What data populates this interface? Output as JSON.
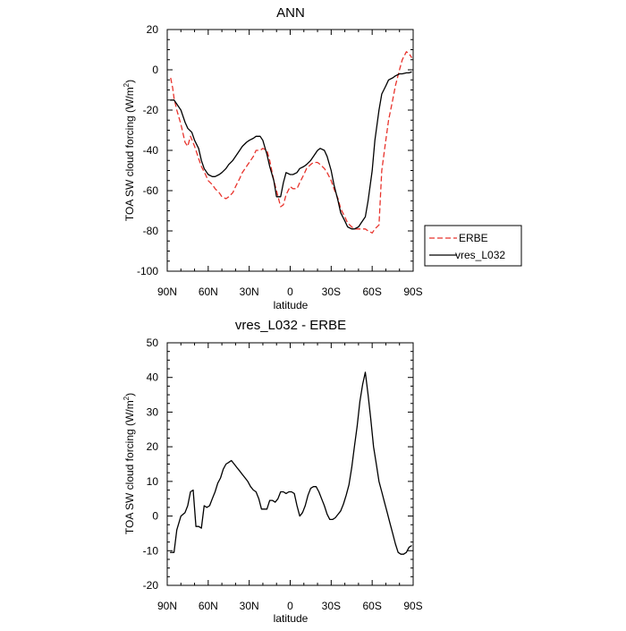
{
  "chart_data": [
    {
      "type": "line",
      "title": "ANN",
      "xlabel": "latitude",
      "ylabel": "TOA SW cloud forcing (W/m",
      "ylabel_superscript": "2",
      "ylabel_close": ")",
      "xlim": [
        90,
        -90
      ],
      "ylim": [
        -100,
        20
      ],
      "xticks": [
        90,
        60,
        30,
        0,
        -30,
        -60,
        -90
      ],
      "xtick_labels": [
        "90N",
        "60N",
        "30N",
        "0",
        "30S",
        "60S",
        "90S"
      ],
      "yticks": [
        -100,
        -80,
        -60,
        -40,
        -20,
        0,
        20
      ],
      "ytick_labels": [
        "-100",
        "-80",
        "-60",
        "-40",
        "-20",
        "0",
        "20"
      ],
      "legend": "outside-right",
      "series": [
        {
          "name": "ERBE",
          "color": "#e8332c",
          "dash": true,
          "x": [
            87.5,
            86,
            85,
            83,
            80,
            77,
            75,
            73,
            70,
            67,
            65,
            62,
            60,
            57,
            55,
            52,
            50,
            47,
            45,
            42,
            40,
            37,
            35,
            32,
            30,
            27,
            25,
            22,
            20,
            17,
            15,
            12,
            10,
            7,
            5,
            3,
            0,
            -2,
            -5,
            -7,
            -10,
            -12,
            -15,
            -17,
            -20,
            -22,
            -25,
            -27,
            -30,
            -32,
            -35,
            -37,
            -40,
            -42,
            -45,
            -47,
            -50,
            -52,
            -55,
            -57,
            -60,
            -62,
            -65,
            -67,
            -70,
            -72,
            -75,
            -77,
            -80,
            -82,
            -85,
            -87,
            -89
          ],
          "y": [
            -4,
            -9,
            -14,
            -20,
            -27,
            -36,
            -38,
            -33,
            -38,
            -44,
            -48,
            -52,
            -55,
            -57,
            -59,
            -61,
            -63,
            -64,
            -63,
            -61,
            -58,
            -54,
            -51,
            -48,
            -46,
            -43,
            -40,
            -40,
            -39,
            -40,
            -45,
            -55,
            -60,
            -68,
            -67,
            -62,
            -58,
            -59,
            -59,
            -56,
            -52,
            -49,
            -47,
            -46,
            -46,
            -47,
            -49,
            -51,
            -55,
            -59,
            -64,
            -69,
            -73,
            -76,
            -78,
            -79,
            -79,
            -79,
            -79,
            -80,
            -81,
            -79,
            -77,
            -50,
            -35,
            -25,
            -15,
            -8,
            0,
            5,
            9,
            8,
            6
          ]
        },
        {
          "name": "vres_L032",
          "color": "#000000",
          "dash": false,
          "x": [
            88,
            86,
            85,
            83,
            80,
            77,
            75,
            72,
            70,
            67,
            65,
            63,
            60,
            57,
            55,
            52,
            50,
            47,
            45,
            42,
            40,
            37,
            35,
            32,
            30,
            27,
            25,
            22,
            20,
            17,
            15,
            12,
            10,
            7,
            5,
            3,
            0,
            -2,
            -5,
            -7,
            -10,
            -12,
            -15,
            -17,
            -20,
            -22,
            -25,
            -27,
            -30,
            -32,
            -35,
            -37,
            -40,
            -42,
            -45,
            -47,
            -50,
            -52,
            -55,
            -57,
            -60,
            -62,
            -65,
            -67,
            -70,
            -72,
            -75,
            -77,
            -80,
            -82,
            -85,
            -87,
            -89
          ],
          "y": [
            -15,
            -15,
            -15,
            -17,
            -20,
            -26,
            -29,
            -31,
            -35,
            -39,
            -45,
            -49,
            -52,
            -53,
            -53,
            -52,
            -51,
            -49,
            -47,
            -45,
            -43,
            -40,
            -38,
            -36,
            -35,
            -34,
            -33,
            -33,
            -35,
            -42,
            -48,
            -55,
            -63,
            -63,
            -56,
            -51,
            -52,
            -52,
            -51,
            -49,
            -48,
            -47,
            -45,
            -43,
            -40,
            -39,
            -40,
            -43,
            -50,
            -57,
            -65,
            -71,
            -75,
            -78,
            -79,
            -79,
            -78,
            -76,
            -73,
            -65,
            -50,
            -35,
            -20,
            -12,
            -8,
            -5,
            -4,
            -3,
            -2,
            -2,
            -1.5,
            -1.5,
            -1
          ]
        }
      ]
    },
    {
      "type": "line",
      "title": "vres_L032 - ERBE",
      "xlabel": "latitude",
      "ylabel": "TOA SW cloud forcing (W/m",
      "ylabel_superscript": "2",
      "ylabel_close": ")",
      "xlim": [
        90,
        -90
      ],
      "ylim": [
        -20,
        50
      ],
      "xticks": [
        90,
        60,
        30,
        0,
        -30,
        -60,
        -90
      ],
      "xtick_labels": [
        "90N",
        "60N",
        "30N",
        "0",
        "30S",
        "60S",
        "90S"
      ],
      "yticks": [
        -20,
        -10,
        0,
        10,
        20,
        30,
        40,
        50
      ],
      "ytick_labels": [
        "-20",
        "-10",
        "0",
        "10",
        "20",
        "30",
        "40",
        "50"
      ],
      "series": [
        {
          "color": "#000000",
          "dash": false,
          "x": [
            88,
            86,
            85,
            83,
            80,
            77,
            75,
            73,
            71,
            69,
            67,
            65,
            63,
            61,
            59,
            57,
            55,
            53,
            51,
            49,
            47,
            45,
            43,
            41,
            39,
            37,
            35,
            33,
            31,
            29,
            27,
            25,
            23,
            21,
            19,
            17,
            15,
            13,
            11,
            9,
            7,
            5,
            3,
            1,
            -1,
            -3,
            -5,
            -7,
            -9,
            -11,
            -13,
            -15,
            -17,
            -19,
            -21,
            -23,
            -25,
            -27,
            -29,
            -31,
            -33,
            -35,
            -37,
            -39,
            -41,
            -43,
            -45,
            -47,
            -49,
            -51,
            -53,
            -55,
            -57,
            -59,
            -61,
            -63,
            -65,
            -67,
            -69,
            -71,
            -73,
            -75,
            -77,
            -79,
            -81,
            -83,
            -85,
            -87,
            -89
          ],
          "y": [
            -10.5,
            -10.5,
            -10.5,
            -4,
            0,
            1,
            3,
            7,
            7.5,
            -3,
            -3,
            -3.5,
            3,
            2.5,
            3,
            5,
            7,
            9.5,
            11,
            13.5,
            15,
            15.5,
            16,
            15,
            14,
            13,
            12,
            11,
            10,
            8.5,
            7.5,
            7,
            5,
            2,
            2,
            2,
            4.5,
            4.5,
            4,
            5,
            7,
            7,
            6.5,
            7,
            7,
            6.5,
            3,
            0,
            1,
            3,
            6,
            8,
            8.5,
            8.5,
            7,
            5,
            3,
            0.5,
            -1,
            -1,
            -0.5,
            0.5,
            1.5,
            3.5,
            6,
            9,
            14,
            20,
            26,
            33,
            38,
            41.5,
            35,
            28,
            20,
            15,
            10,
            7,
            4,
            1,
            -2,
            -5,
            -8,
            -10.5,
            -11,
            -11,
            -10.5,
            -9,
            -8.5
          ]
        }
      ]
    }
  ]
}
